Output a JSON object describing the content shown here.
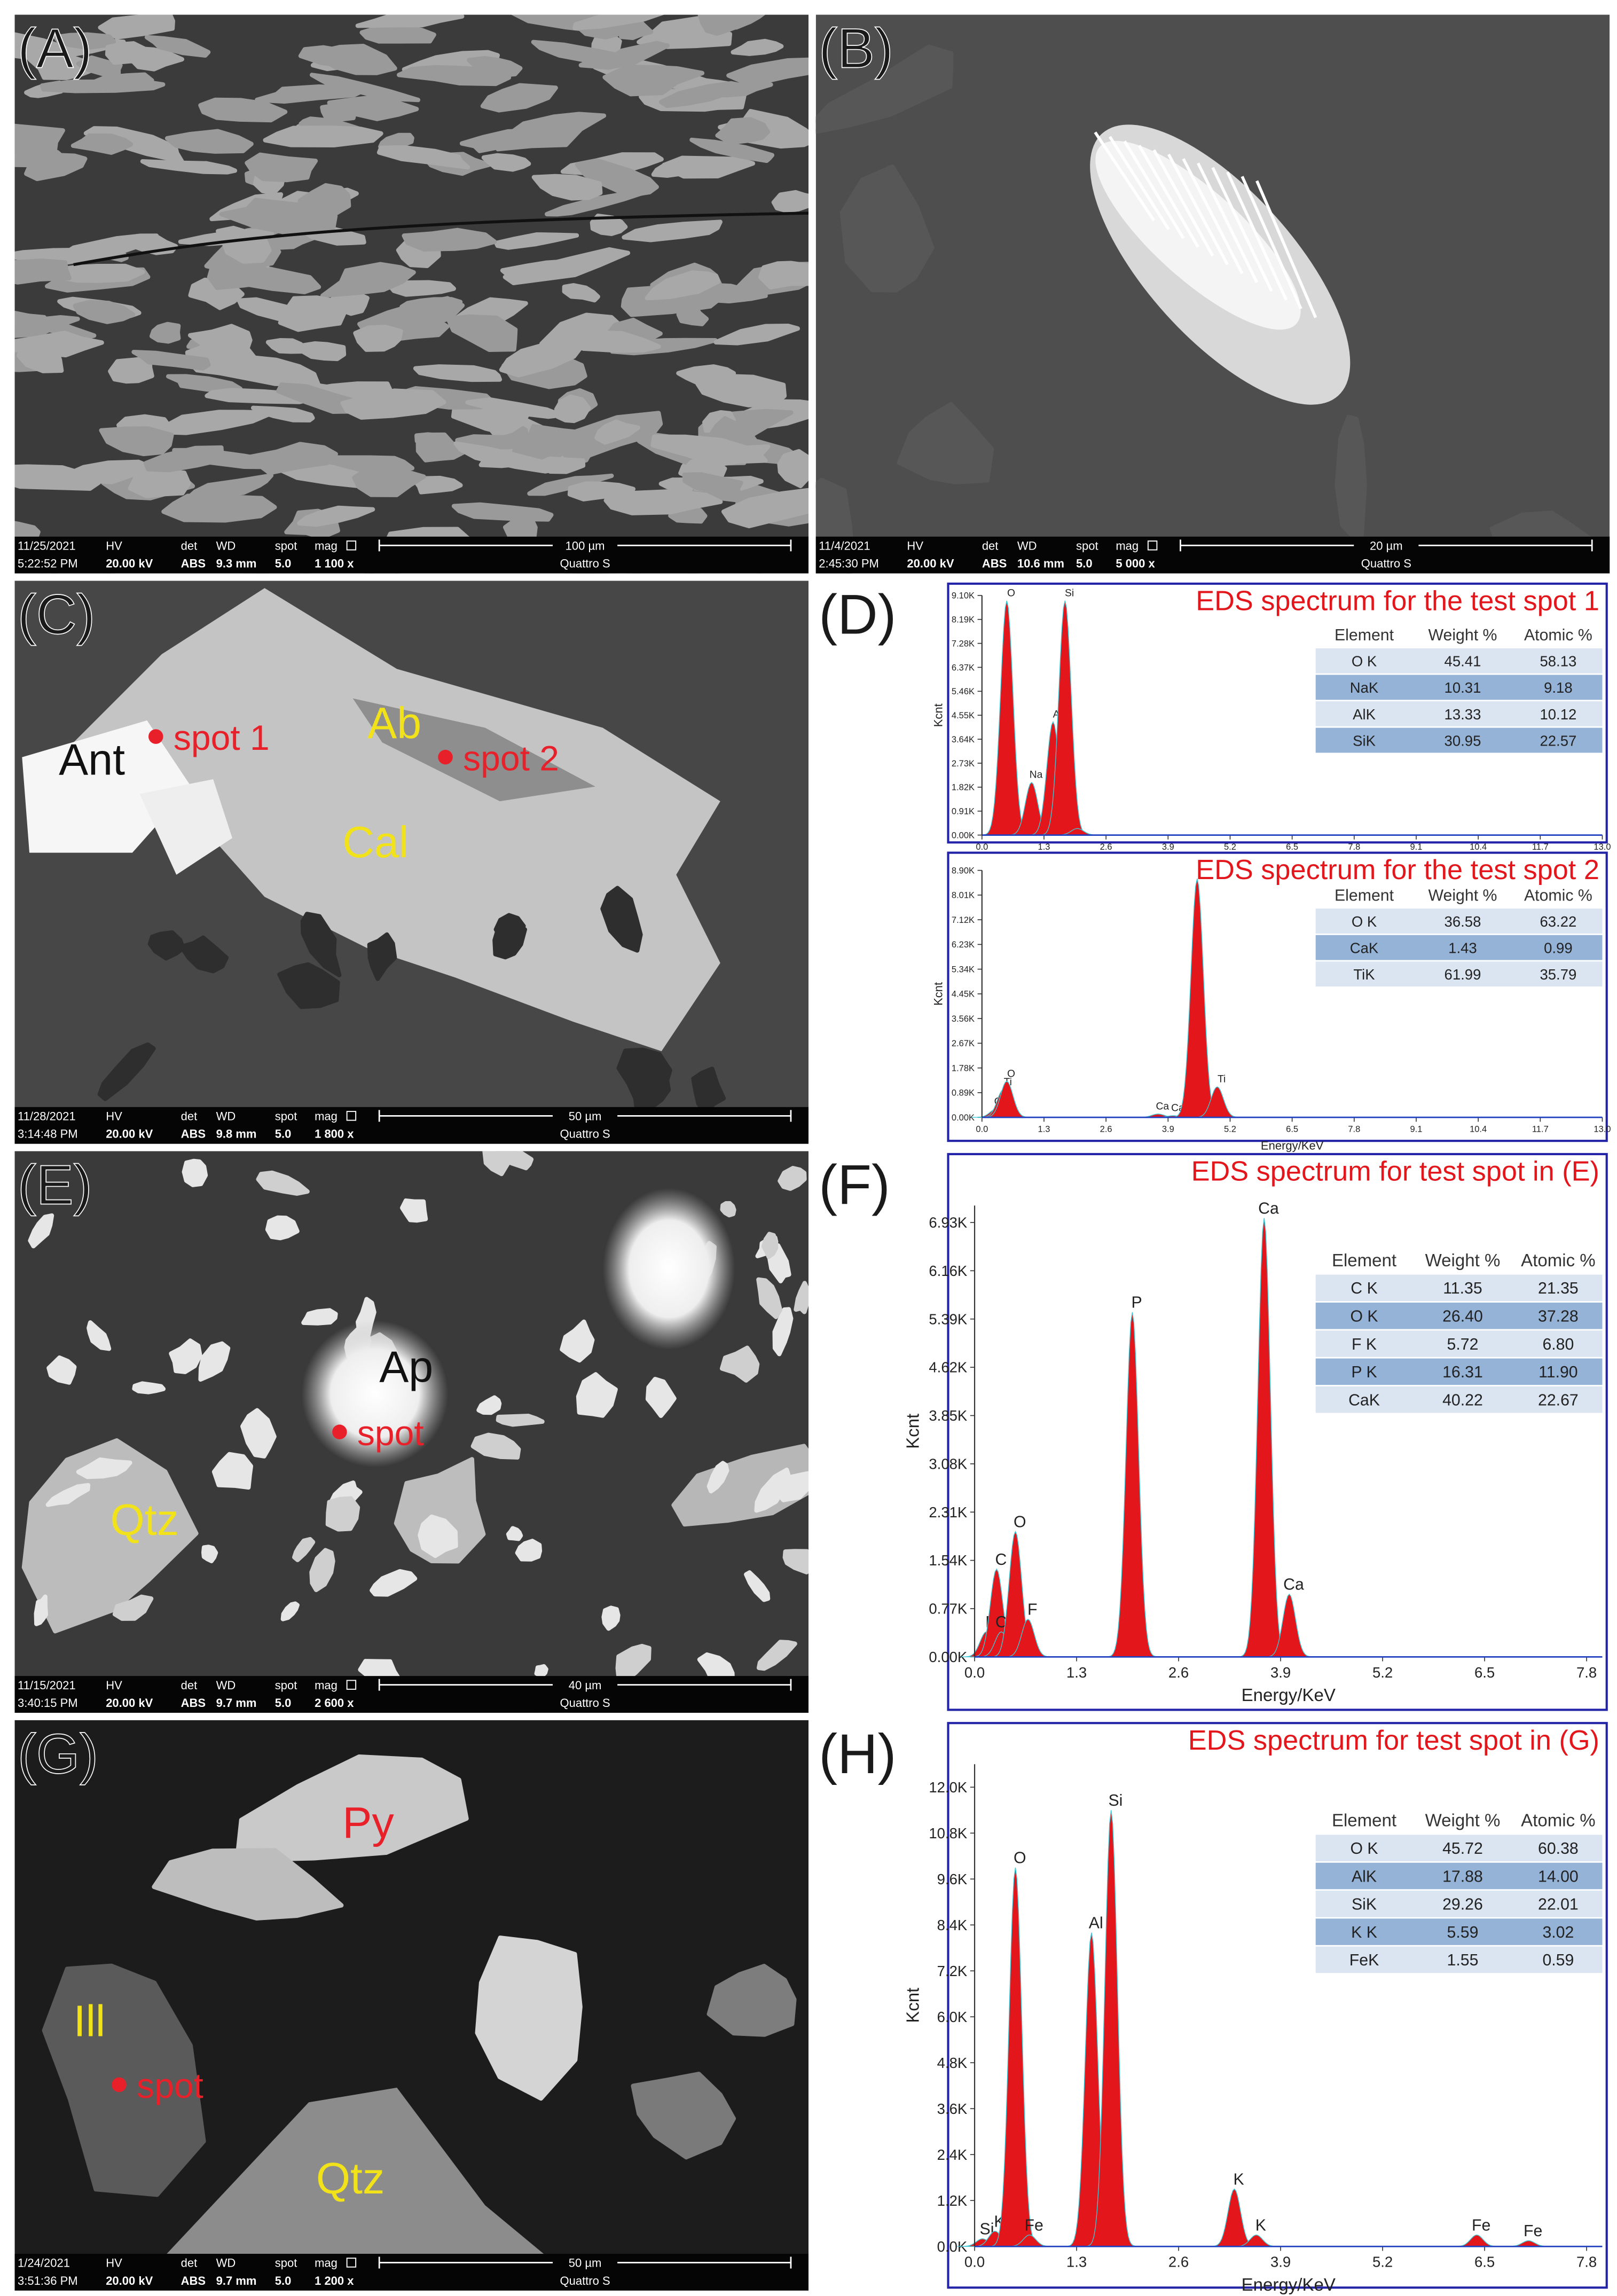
{
  "sem_fields": [
    "HV",
    "det",
    "WD",
    "spot",
    "mag"
  ],
  "images": [
    {
      "label": "(A)",
      "date": "11/25/2021",
      "time": "5:22:52 PM",
      "hv": "20.00 kV",
      "det": "ABS",
      "wd": "9.3 mm",
      "spot": "5.0",
      "mag": "1 100 x",
      "scale": "100 µm",
      "instrument": "Quattro S",
      "annotations": []
    },
    {
      "label": "(B)",
      "date": "11/4/2021",
      "time": "2:45:30 PM",
      "hv": "20.00 kV",
      "det": "ABS",
      "wd": "10.6 mm",
      "spot": "5.0",
      "mag": "5 000 x",
      "scale": "20 µm",
      "instrument": "Quattro S",
      "annotations": []
    },
    {
      "label": "(C)",
      "date": "11/28/2021",
      "time": "3:14:48 PM",
      "hv": "20.00 kV",
      "det": "ABS",
      "wd": "9.8 mm",
      "spot": "5.0",
      "mag": "1 800 x",
      "scale": "50 µm",
      "instrument": "Quattro S",
      "annotations": [
        {
          "text": "Ant",
          "color": "#111111"
        },
        {
          "text": "spot 1",
          "color": "#e8202a"
        },
        {
          "text": "Ab",
          "color": "#f2e21a"
        },
        {
          "text": "spot 2",
          "color": "#e8202a"
        },
        {
          "text": "Cal",
          "color": "#f2e21a"
        }
      ]
    },
    {
      "label": "(E)",
      "date": "11/15/2021",
      "time": "3:40:15 PM",
      "hv": "20.00 kV",
      "det": "ABS",
      "wd": "9.7 mm",
      "spot": "5.0",
      "mag": "2 600 x",
      "scale": "40 µm",
      "instrument": "Quattro S",
      "annotations": [
        {
          "text": "Ap",
          "color": "#111111"
        },
        {
          "text": "spot",
          "color": "#e8202a"
        },
        {
          "text": "Qtz",
          "color": "#f2e21a"
        }
      ]
    },
    {
      "label": "(G)",
      "date": "1/24/2021",
      "time": "3:51:36 PM",
      "hv": "20.00 kV",
      "det": "ABS",
      "wd": "9.7 mm",
      "spot": "5.0",
      "mag": "1 200 x",
      "scale": "50 µm",
      "instrument": "Quattro S",
      "annotations": [
        {
          "text": "Ill",
          "color": "#f2e21a"
        },
        {
          "text": "spot",
          "color": "#e8202a"
        },
        {
          "text": "Py",
          "color": "#e8202a"
        },
        {
          "text": "Qtz",
          "color": "#f2e21a"
        }
      ]
    }
  ],
  "spectra": [
    {
      "label": "(D)",
      "title": "EDS spectrum for the test spot 1",
      "y_label": "Kcnt",
      "xlim": [
        0,
        13
      ],
      "ylim": [
        0,
        9.1
      ],
      "xticks": [
        {
          "value": 0,
          "label": "0.0"
        },
        1.3,
        2.6,
        3.9,
        5.2,
        6.5,
        7.8,
        9.1,
        10.4,
        11.7,
        {
          "value": 13,
          "label": "13.0"
        }
      ],
      "yticks": [
        {
          "value": 0,
          "label": "0.00K"
        },
        {
          "value": 0.91,
          "label": "0.91K"
        },
        {
          "value": 1.82,
          "label": "1.82K"
        },
        {
          "value": 2.73,
          "label": "2.73K"
        },
        {
          "value": 3.64,
          "label": "3.64K"
        },
        {
          "value": 4.55,
          "label": "4.55K"
        },
        {
          "value": 5.46,
          "label": "5.46K"
        },
        {
          "value": 6.37,
          "label": "6.37K"
        },
        {
          "value": 7.28,
          "label": "7.28K"
        },
        {
          "value": 8.19,
          "label": "8.19K"
        },
        {
          "value": 9.1,
          "label": "9.10K"
        }
      ],
      "peaks": [
        {
          "x": 0.52,
          "y": 8.9,
          "label": "O"
        },
        {
          "x": 1.04,
          "y": 2.0,
          "label": "Na"
        },
        {
          "x": 1.49,
          "y": 4.3,
          "label": "Al"
        },
        {
          "x": 1.74,
          "y": 8.9,
          "label": "Si"
        },
        {
          "x": 2.0,
          "y": 0.25
        }
      ],
      "table": {
        "header": [
          "Element",
          "Weight %",
          "Atomic %"
        ],
        "rows": [
          [
            "O K",
            "45.41",
            "58.13"
          ],
          [
            "NaK",
            "10.31",
            "9.18"
          ],
          [
            "AlK",
            "13.33",
            "10.12"
          ],
          [
            "SiK",
            "30.95",
            "22.57"
          ]
        ]
      }
    },
    {
      "title": "EDS spectrum for the test spot 2",
      "y_label": "Kcnt",
      "x_label": "Energy/KeV",
      "xlim": [
        0,
        13
      ],
      "ylim": [
        0,
        8.9
      ],
      "xticks": [
        {
          "value": 0,
          "label": "0.0"
        },
        1.3,
        2.6,
        3.9,
        5.2,
        6.5,
        7.8,
        9.1,
        10.4,
        11.7,
        {
          "value": 13,
          "label": "13.0"
        }
      ],
      "yticks": [
        {
          "value": 0,
          "label": "0.00K"
        },
        {
          "value": 0.89,
          "label": "0.89K"
        },
        {
          "value": 1.78,
          "label": "1.78K"
        },
        {
          "value": 2.67,
          "label": "2.67K"
        },
        {
          "value": 3.56,
          "label": "3.56K"
        },
        {
          "value": 4.45,
          "label": "4.45K"
        },
        {
          "value": 5.34,
          "label": "5.34K"
        },
        {
          "value": 6.23,
          "label": "6.23K"
        },
        {
          "value": 7.12,
          "label": "7.12K"
        },
        {
          "value": 8.01,
          "label": "8.01K"
        },
        {
          "value": 8.9,
          "label": "8.90K"
        }
      ],
      "peaks": [
        {
          "x": 0.3,
          "y": 0.3,
          "label": "Ca"
        },
        {
          "x": 0.45,
          "y": 1.0,
          "label": "Ti"
        },
        {
          "x": 0.52,
          "y": 1.3,
          "label": "O"
        },
        {
          "x": 3.69,
          "y": 0.12,
          "label": "Ca"
        },
        {
          "x": 4.01,
          "y": 0.06,
          "label": "Ca"
        },
        {
          "x": 4.51,
          "y": 8.6
        },
        {
          "x": 4.93,
          "y": 1.1,
          "label": "Ti"
        }
      ],
      "table": {
        "header": [
          "Element",
          "Weight %",
          "Atomic %"
        ],
        "rows": [
          [
            "O K",
            "36.58",
            "63.22"
          ],
          [
            "CaK",
            "1.43",
            "0.99"
          ],
          [
            "TiK",
            "61.99",
            "35.79"
          ]
        ]
      }
    },
    {
      "label": "(F)",
      "title": "EDS spectrum for test spot in (E)",
      "y_label": "Kcnt",
      "x_label": "Energy/KeV",
      "xlim": [
        0,
        8
      ],
      "ylim": [
        0,
        7.2
      ],
      "xticks": [
        {
          "value": 0,
          "label": "0.0"
        },
        1.3,
        2.6,
        3.9,
        5.2,
        6.5,
        7.8
      ],
      "yticks": [
        {
          "value": 0,
          "label": "0.00K"
        },
        {
          "value": 0.77,
          "label": "0.77K"
        },
        {
          "value": 1.54,
          "label": "1.54K"
        },
        {
          "value": 2.31,
          "label": "2.31K"
        },
        {
          "value": 3.08,
          "label": "3.08K"
        },
        {
          "value": 3.85,
          "label": "3.85K"
        },
        {
          "value": 4.62,
          "label": "4.62K"
        },
        {
          "value": 5.39,
          "label": "5.39K"
        },
        {
          "value": 6.16,
          "label": "6.16K"
        },
        {
          "value": 6.93,
          "label": "6.93K"
        }
      ],
      "peaks": [
        {
          "x": 0.15,
          "y": 0.4,
          "label": "P"
        },
        {
          "x": 0.28,
          "y": 1.4,
          "label": "C"
        },
        {
          "x": 0.34,
          "y": 0.4,
          "label": "Ca"
        },
        {
          "x": 0.52,
          "y": 2.0,
          "label": "O"
        },
        {
          "x": 0.68,
          "y": 0.6,
          "label": "F"
        },
        {
          "x": 2.01,
          "y": 5.5,
          "label": "P"
        },
        {
          "x": 3.69,
          "y": 7.0,
          "label": "Ca"
        },
        {
          "x": 4.01,
          "y": 1.0,
          "label": "Ca"
        }
      ],
      "table": {
        "header": [
          "Element",
          "Weight %",
          "Atomic %"
        ],
        "rows": [
          [
            "C K",
            "11.35",
            "21.35"
          ],
          [
            "O K",
            "26.40",
            "37.28"
          ],
          [
            "F K",
            "5.72",
            "6.80"
          ],
          [
            "P K",
            "16.31",
            "11.90"
          ],
          [
            "CaK",
            "40.22",
            "22.67"
          ]
        ]
      }
    },
    {
      "label": "(H)",
      "title": "EDS spectrum for test spot in (G)",
      "y_label": "Kcnt",
      "x_label": "Energy/KeV",
      "xlim": [
        0,
        8
      ],
      "ylim": [
        0,
        12.6
      ],
      "xticks": [
        {
          "value": 0,
          "label": "0.0"
        },
        1.3,
        2.6,
        3.9,
        5.2,
        6.5,
        7.8
      ],
      "yticks": [
        {
          "value": 0,
          "label": "0.0K"
        },
        {
          "value": 1.2,
          "label": "1.2K"
        },
        {
          "value": 2.4,
          "label": "2.4K"
        },
        {
          "value": 3.6,
          "label": "3.6K"
        },
        {
          "value": 4.8,
          "label": "4.8K"
        },
        {
          "value": 6,
          "label": "6.0K"
        },
        {
          "value": 7.2,
          "label": "7.2K"
        },
        {
          "value": 8.4,
          "label": "8.4K"
        },
        {
          "value": 9.6,
          "label": "9.6K"
        },
        {
          "value": 10.8,
          "label": "10.8K"
        },
        {
          "value": 12,
          "label": "12.0K"
        }
      ],
      "peaks": [
        {
          "x": 0.1,
          "y": 0.2,
          "label": "Si"
        },
        {
          "x": 0.26,
          "y": 0.4,
          "label": "K"
        },
        {
          "x": 0.52,
          "y": 9.9,
          "label": "O"
        },
        {
          "x": 0.7,
          "y": 0.3,
          "label": "Fe"
        },
        {
          "x": 1.49,
          "y": 8.2,
          "label": "Al"
        },
        {
          "x": 1.74,
          "y": 11.4,
          "label": "Si"
        },
        {
          "x": 3.31,
          "y": 1.5,
          "label": "K"
        },
        {
          "x": 3.59,
          "y": 0.3,
          "label": "K"
        },
        {
          "x": 6.4,
          "y": 0.3,
          "label": "Fe"
        },
        {
          "x": 7.06,
          "y": 0.15,
          "label": "Fe"
        }
      ],
      "table": {
        "header": [
          "Element",
          "Weight %",
          "Atomic %"
        ],
        "rows": [
          [
            "O K",
            "45.72",
            "60.38"
          ],
          [
            "AlK",
            "17.88",
            "14.00"
          ],
          [
            "SiK",
            "29.26",
            "22.01"
          ],
          [
            "K K",
            "5.59",
            "3.02"
          ],
          [
            "FeK",
            "1.55",
            "0.59"
          ]
        ]
      }
    }
  ]
}
